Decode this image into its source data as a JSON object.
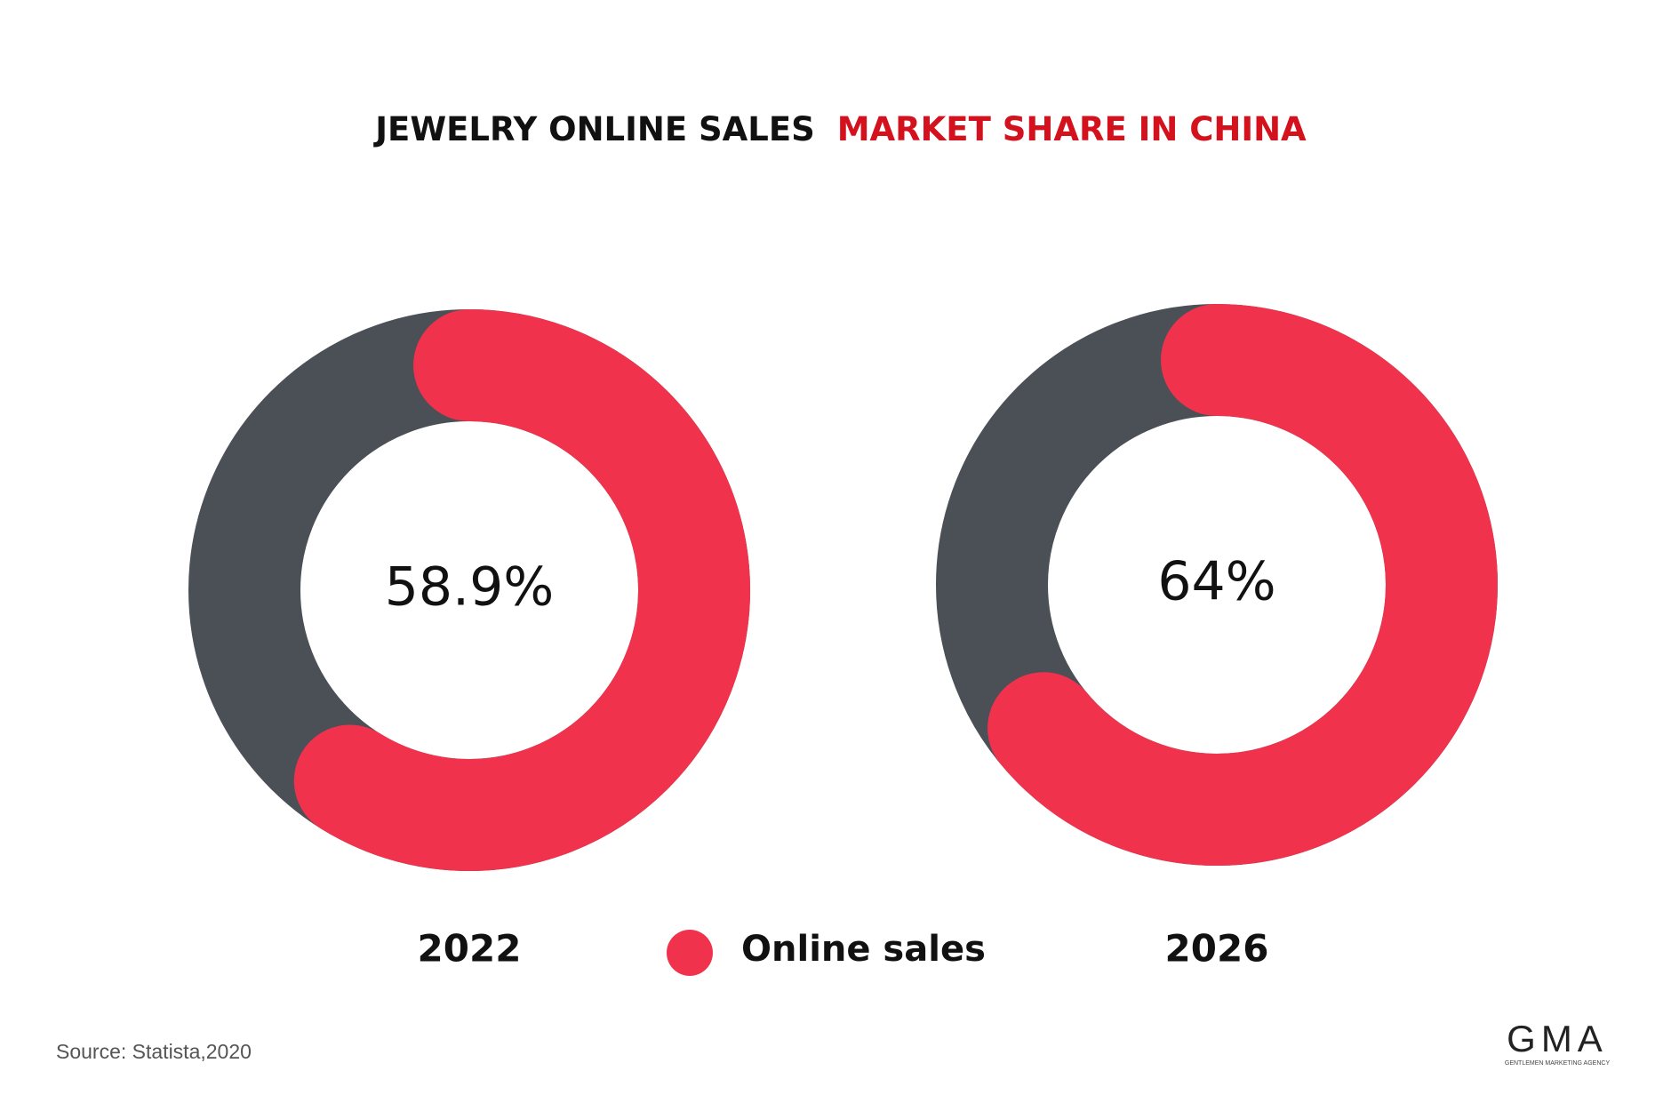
{
  "title": [
    "JEWELRY ONLINE SALES",
    "MARKET SHARE IN CHINA"
  ],
  "chart_data": [
    {
      "type": "donut",
      "label": "2022",
      "ylim": [
        0,
        100
      ],
      "track_color": "#4b4f56",
      "series": [
        {
          "name": "Online sales",
          "color": "#f0324c",
          "values": [
            58.9
          ],
          "value_labels": [
            "58.9%"
          ]
        }
      ]
    },
    {
      "type": "donut",
      "label": "2026",
      "ylim": [
        0,
        100
      ],
      "track_color": "#4b4f56",
      "series": [
        {
          "name": "Online sales",
          "color": "#f0324c",
          "values": [
            64
          ],
          "value_labels": [
            "64%"
          ]
        }
      ]
    }
  ],
  "source": "Source: Statista,2020",
  "logo": {
    "name": "GMA",
    "tagline": "GENTLEMEN MARKETING AGENCY"
  }
}
